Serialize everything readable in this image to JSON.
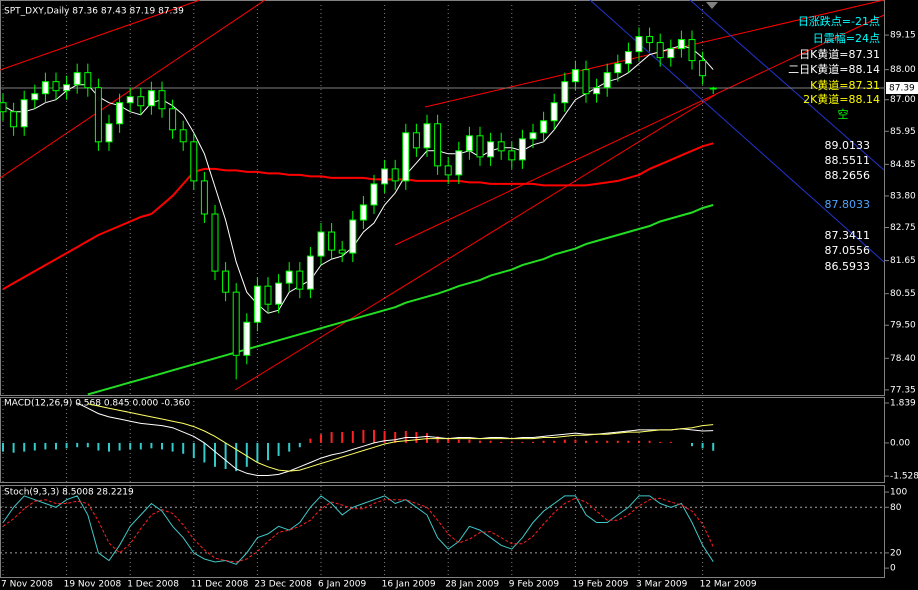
{
  "chart_data": [
    {
      "type": "candlestick",
      "title": "SPT_DXY,Daily  87.36 87.43 87.19 87.39",
      "up_color": "#ffffff",
      "down_color": "#000000",
      "candle_stroke": "#00ff00",
      "open": [
        86.9,
        86.6,
        86.1,
        87.0,
        87.2,
        87.6,
        87.3,
        87.5,
        87.9,
        87.4,
        85.6,
        86.2,
        86.9,
        87.1,
        86.8,
        87.3,
        86.7,
        86.0,
        85.6,
        84.3,
        83.2,
        81.3,
        80.6,
        78.5,
        79.6,
        80.8,
        80.2,
        80.9,
        81.3,
        80.7,
        81.8,
        82.6,
        82.0,
        81.9,
        83.0,
        83.5,
        84.2,
        84.7,
        84.3,
        85.9,
        85.4,
        86.2,
        84.8,
        84.5,
        85.3,
        85.8,
        85.1,
        85.6,
        85.3,
        85.0,
        85.7,
        85.9,
        86.3,
        86.9,
        87.6,
        88.0,
        87.2,
        87.4,
        87.9,
        88.2,
        88.6,
        89.1,
        88.9,
        88.4,
        88.7,
        89.0,
        88.3,
        87.36
      ],
      "high": [
        87.2,
        86.9,
        87.3,
        87.5,
        87.9,
        87.9,
        87.8,
        88.2,
        88.2,
        87.7,
        86.5,
        87.2,
        87.4,
        87.4,
        87.6,
        87.6,
        87.0,
        86.3,
        85.9,
        84.6,
        83.5,
        81.6,
        80.9,
        79.9,
        81.1,
        81.1,
        81.2,
        81.6,
        81.6,
        82.1,
        82.9,
        82.9,
        82.3,
        83.3,
        83.8,
        84.5,
        85.0,
        85.0,
        86.2,
        86.2,
        86.5,
        86.5,
        85.1,
        85.6,
        86.1,
        86.1,
        85.9,
        85.9,
        85.6,
        86.0,
        86.2,
        86.6,
        87.2,
        87.9,
        88.3,
        88.3,
        87.7,
        88.2,
        88.5,
        88.9,
        89.4,
        89.4,
        89.2,
        89.0,
        89.3,
        89.3,
        88.6,
        87.43
      ],
      "low": [
        86.3,
        85.8,
        85.8,
        86.7,
        86.9,
        87.0,
        87.0,
        87.2,
        87.1,
        85.3,
        85.3,
        85.9,
        86.6,
        86.5,
        86.5,
        86.4,
        85.7,
        85.3,
        84.0,
        82.9,
        81.0,
        80.3,
        77.7,
        78.2,
        79.3,
        79.9,
        79.9,
        80.6,
        80.4,
        80.4,
        81.5,
        81.7,
        81.6,
        81.6,
        82.7,
        83.2,
        83.9,
        84.0,
        84.0,
        85.1,
        85.1,
        84.5,
        84.2,
        84.2,
        85.0,
        84.8,
        84.8,
        85.0,
        84.7,
        84.7,
        85.4,
        85.6,
        86.0,
        86.6,
        87.3,
        86.9,
        86.9,
        87.1,
        87.6,
        87.9,
        88.3,
        88.6,
        88.1,
        88.1,
        88.4,
        88.0,
        87.5,
        87.19
      ],
      "close": [
        86.6,
        86.1,
        87.0,
        87.2,
        87.6,
        87.3,
        87.5,
        87.9,
        87.4,
        85.6,
        86.2,
        86.9,
        87.1,
        86.8,
        87.3,
        86.7,
        86.0,
        85.6,
        84.3,
        83.2,
        81.3,
        80.6,
        78.5,
        79.6,
        80.8,
        80.2,
        80.9,
        81.3,
        80.7,
        81.8,
        82.6,
        82.0,
        81.9,
        83.0,
        83.5,
        84.2,
        84.7,
        84.3,
        85.9,
        85.4,
        86.2,
        84.8,
        84.5,
        85.3,
        85.8,
        85.1,
        85.6,
        85.3,
        85.0,
        85.7,
        85.9,
        86.3,
        86.9,
        87.6,
        88.0,
        87.2,
        87.4,
        87.9,
        88.2,
        88.6,
        89.1,
        88.9,
        88.4,
        88.7,
        89.0,
        88.3,
        87.8,
        87.39
      ],
      "series": [
        {
          "color": "#ff0000",
          "width": 2,
          "values": [
            80.7,
            80.9,
            81.1,
            81.3,
            81.5,
            81.7,
            81.9,
            82.1,
            82.3,
            82.5,
            82.65,
            82.8,
            82.95,
            83.1,
            83.2,
            83.5,
            83.8,
            84.2,
            84.6,
            84.7,
            84.7,
            84.65,
            84.65,
            84.6,
            84.6,
            84.55,
            84.55,
            84.5,
            84.5,
            84.45,
            84.45,
            84.4,
            84.4,
            84.4,
            84.4,
            84.35,
            84.35,
            84.35,
            84.35,
            84.3,
            84.3,
            84.3,
            84.3,
            84.3,
            84.25,
            84.25,
            84.2,
            84.2,
            84.2,
            84.2,
            84.2,
            84.15,
            84.15,
            84.15,
            84.15,
            84.15,
            84.2,
            84.25,
            84.3,
            84.4,
            84.5,
            84.7,
            84.85,
            85.0,
            85.15,
            85.3,
            85.45,
            85.55
          ]
        },
        {
          "color": "#22dd22",
          "width": 2,
          "values": [
            null,
            null,
            null,
            null,
            null,
            null,
            null,
            null,
            77.2,
            77.3,
            77.4,
            77.5,
            77.6,
            77.7,
            77.8,
            77.9,
            78.0,
            78.1,
            78.2,
            78.3,
            78.4,
            78.5,
            78.6,
            78.7,
            78.8,
            78.9,
            79.0,
            79.1,
            79.2,
            79.3,
            79.4,
            79.5,
            79.6,
            79.7,
            79.8,
            79.9,
            80.0,
            80.1,
            80.25,
            80.35,
            80.45,
            80.55,
            80.67,
            80.8,
            80.9,
            81.0,
            81.15,
            81.25,
            81.35,
            81.5,
            81.6,
            81.7,
            81.85,
            81.95,
            82.05,
            82.2,
            82.3,
            82.4,
            82.5,
            82.6,
            82.7,
            82.8,
            82.95,
            83.05,
            83.15,
            83.25,
            83.4,
            83.5
          ]
        },
        {
          "color": "#ffffff",
          "width": 1,
          "values": [
            86.8,
            86.6,
            86.6,
            86.7,
            86.9,
            87.0,
            87.3,
            87.5,
            87.5,
            87.1,
            86.9,
            86.8,
            86.6,
            86.5,
            86.9,
            87.0,
            86.8,
            86.5,
            85.9,
            85.2,
            84.1,
            83.0,
            81.6,
            80.6,
            80.2,
            79.9,
            80.0,
            80.6,
            80.8,
            81.0,
            81.5,
            81.7,
            81.8,
            82.1,
            82.6,
            82.9,
            83.5,
            83.9,
            84.5,
            84.9,
            85.3,
            85.3,
            85.2,
            85.2,
            85.3,
            85.1,
            85.3,
            85.4,
            85.4,
            85.3,
            85.5,
            85.6,
            86.0,
            86.5,
            87.0,
            87.2,
            87.4,
            87.6,
            87.7,
            87.9,
            88.2,
            88.5,
            88.6,
            88.7,
            88.8,
            88.7,
            88.4,
            88.0
          ]
        }
      ],
      "ylim": [
        77.18,
        90.15
      ],
      "yticks": [
        89.15,
        {
          "value": 88,
          "label": "88.00"
        },
        {
          "value": 87,
          "label": "87.00"
        },
        85.95,
        84.85,
        {
          "value": 83.8,
          "label": "83.80"
        },
        82.75,
        81.65,
        80.55,
        {
          "value": 79.5,
          "label": "79.50"
        },
        {
          "value": 78.4,
          "label": "78.40"
        },
        77.35
      ],
      "last_price": 87.39,
      "annotations": [
        {
          "text": "日涨跌点=-21点",
          "color": "#00ffff"
        },
        {
          "text": "日震幅=24点",
          "color": "#00ffff"
        },
        {
          "text": "日K黄道=87.31",
          "color": "#ffffff"
        },
        {
          "text": "二日K黄道=88.14",
          "color": "#ffffff"
        },
        {
          "text": "K黄道=87.31",
          "color": "#ffff00"
        },
        {
          "text": "2K黄道=88.14",
          "color": "#ffff00"
        },
        {
          "text": "空",
          "color": "#00ff00"
        },
        {
          "text": "89.0133",
          "color": "#ffffff"
        },
        {
          "text": "88.5511",
          "color": "#ffffff"
        },
        {
          "text": "88.2656",
          "color": "#ffffff"
        },
        {
          "text": "87.8033",
          "color": "#4fa3ff"
        },
        {
          "text": "87.3411",
          "color": "#ffffff"
        },
        {
          "text": "87.0556",
          "color": "#ffffff"
        },
        {
          "text": "86.5933",
          "color": "#ffffff"
        }
      ]
    },
    {
      "type": "macd",
      "title": "MACD(12,26,9) 0.568 0.845 0.000 -0.360",
      "histogram": [
        -0.4,
        -0.45,
        -0.4,
        -0.35,
        -0.3,
        -0.3,
        -0.25,
        -0.2,
        -0.2,
        -0.35,
        -0.4,
        -0.35,
        -0.3,
        -0.3,
        -0.25,
        -0.3,
        -0.4,
        -0.5,
        -0.7,
        -0.9,
        -1.1,
        -1.2,
        -1.3,
        -1.1,
        -0.9,
        -0.8,
        -0.6,
        -0.4,
        -0.2,
        0.2,
        0.4,
        0.5,
        0.5,
        0.55,
        0.6,
        0.6,
        0.55,
        0.5,
        0.55,
        0.5,
        0.45,
        0.3,
        0.2,
        0.15,
        0.15,
        0.1,
        0.1,
        0.05,
        0.05,
        0.05,
        0.05,
        0.1,
        0.1,
        0.15,
        0.15,
        0.1,
        0.1,
        0.1,
        0.1,
        0.1,
        0.1,
        0.1,
        0.05,
        0.05,
        0.0,
        -0.15,
        -0.25,
        -0.36
      ],
      "histogram_up_color": "#ff2222",
      "histogram_down_color": "#33cccc",
      "series": [
        {
          "color": "#ffffff",
          "width": 1,
          "values": [
            null,
            null,
            null,
            null,
            null,
            null,
            null,
            1.84,
            1.6,
            1.35,
            1.2,
            1.1,
            1.0,
            0.9,
            0.85,
            0.8,
            0.7,
            0.5,
            0.3,
            0.0,
            -0.4,
            -0.8,
            -1.2,
            -1.4,
            -1.5,
            -1.5,
            -1.45,
            -1.3,
            -1.1,
            -0.9,
            -0.7,
            -0.55,
            -0.45,
            -0.3,
            -0.15,
            0.0,
            0.1,
            0.15,
            0.25,
            0.25,
            0.3,
            0.25,
            0.2,
            0.25,
            0.25,
            0.2,
            0.25,
            0.25,
            0.2,
            0.25,
            0.25,
            0.3,
            0.35,
            0.4,
            0.45,
            0.4,
            0.4,
            0.45,
            0.5,
            0.55,
            0.6,
            0.6,
            0.6,
            0.6,
            0.65,
            0.6,
            0.55,
            0.568
          ]
        },
        {
          "color": "#ffff66",
          "width": 1,
          "values": [
            null,
            null,
            null,
            null,
            null,
            null,
            null,
            null,
            1.8,
            1.7,
            1.6,
            1.5,
            1.4,
            1.3,
            1.2,
            1.1,
            1.0,
            0.9,
            0.75,
            0.55,
            0.3,
            0.0,
            -0.3,
            -0.6,
            -0.9,
            -1.1,
            -1.25,
            -1.3,
            -1.25,
            -1.1,
            -0.95,
            -0.8,
            -0.65,
            -0.5,
            -0.35,
            -0.2,
            -0.05,
            0.05,
            0.1,
            0.15,
            0.2,
            0.2,
            0.2,
            0.2,
            0.2,
            0.2,
            0.2,
            0.2,
            0.2,
            0.2,
            0.2,
            0.25,
            0.25,
            0.3,
            0.35,
            0.35,
            0.4,
            0.4,
            0.45,
            0.5,
            0.5,
            0.55,
            0.6,
            0.6,
            0.65,
            0.7,
            0.8,
            0.845
          ]
        }
      ],
      "ylim": [
        -1.8,
        2.115
      ],
      "yticks": [
        1.839,
        {
          "value": 0,
          "label": "0.00"
        },
        -1.528
      ]
    },
    {
      "type": "stoch",
      "title": "Stoch(9,3,3) 8.5008 28.2219",
      "categories": [
        "7 Nov 2008",
        null,
        null,
        null,
        null,
        null,
        "19 Nov 2008",
        null,
        null,
        null,
        null,
        null,
        "1 Dec 2008",
        null,
        null,
        null,
        null,
        null,
        "11 Dec 2008",
        null,
        null,
        null,
        null,
        null,
        "23 Dec 2008",
        null,
        null,
        null,
        null,
        null,
        "6 Jan 2009",
        null,
        null,
        null,
        null,
        null,
        "16 Jan 2009",
        null,
        null,
        null,
        null,
        null,
        "28 Jan 2009",
        null,
        null,
        null,
        null,
        null,
        "9 Feb 2009",
        null,
        null,
        null,
        null,
        null,
        "19 Feb 2009",
        null,
        null,
        null,
        null,
        null,
        "3 Mar 2009",
        null,
        null,
        null,
        null,
        null,
        "12 Mar 2009",
        null
      ],
      "series": [
        {
          "color": "#40c8c8",
          "width": 1,
          "values": [
            60,
            80,
            95,
            90,
            85,
            80,
            90,
            95,
            70,
            20,
            10,
            30,
            55,
            70,
            85,
            75,
            55,
            40,
            20,
            12,
            8,
            10,
            5,
            20,
            40,
            45,
            55,
            50,
            60,
            80,
            95,
            85,
            70,
            80,
            85,
            90,
            95,
            85,
            90,
            80,
            70,
            40,
            25,
            35,
            55,
            50,
            40,
            30,
            25,
            40,
            60,
            75,
            85,
            95,
            95,
            70,
            60,
            60,
            70,
            80,
            95,
            95,
            85,
            80,
            85,
            60,
            30,
            8.5008
          ]
        },
        {
          "color": "#ff2020",
          "width": 1,
          "dash": true,
          "values": [
            55,
            65,
            78,
            88,
            90,
            85,
            85,
            88,
            85,
            62,
            33,
            20,
            32,
            52,
            70,
            77,
            72,
            57,
            38,
            24,
            13,
            10,
            8,
            12,
            22,
            35,
            47,
            50,
            55,
            63,
            78,
            87,
            83,
            78,
            78,
            85,
            90,
            90,
            90,
            85,
            80,
            63,
            45,
            33,
            38,
            47,
            48,
            40,
            32,
            32,
            42,
            58,
            73,
            85,
            92,
            87,
            75,
            63,
            63,
            70,
            82,
            90,
            92,
            87,
            83,
            75,
            58,
            28.2219
          ]
        }
      ],
      "levels": [
        80,
        20
      ],
      "ylim": [
        -13,
        108
      ],
      "yticks": [
        100,
        80,
        20,
        0
      ]
    }
  ]
}
